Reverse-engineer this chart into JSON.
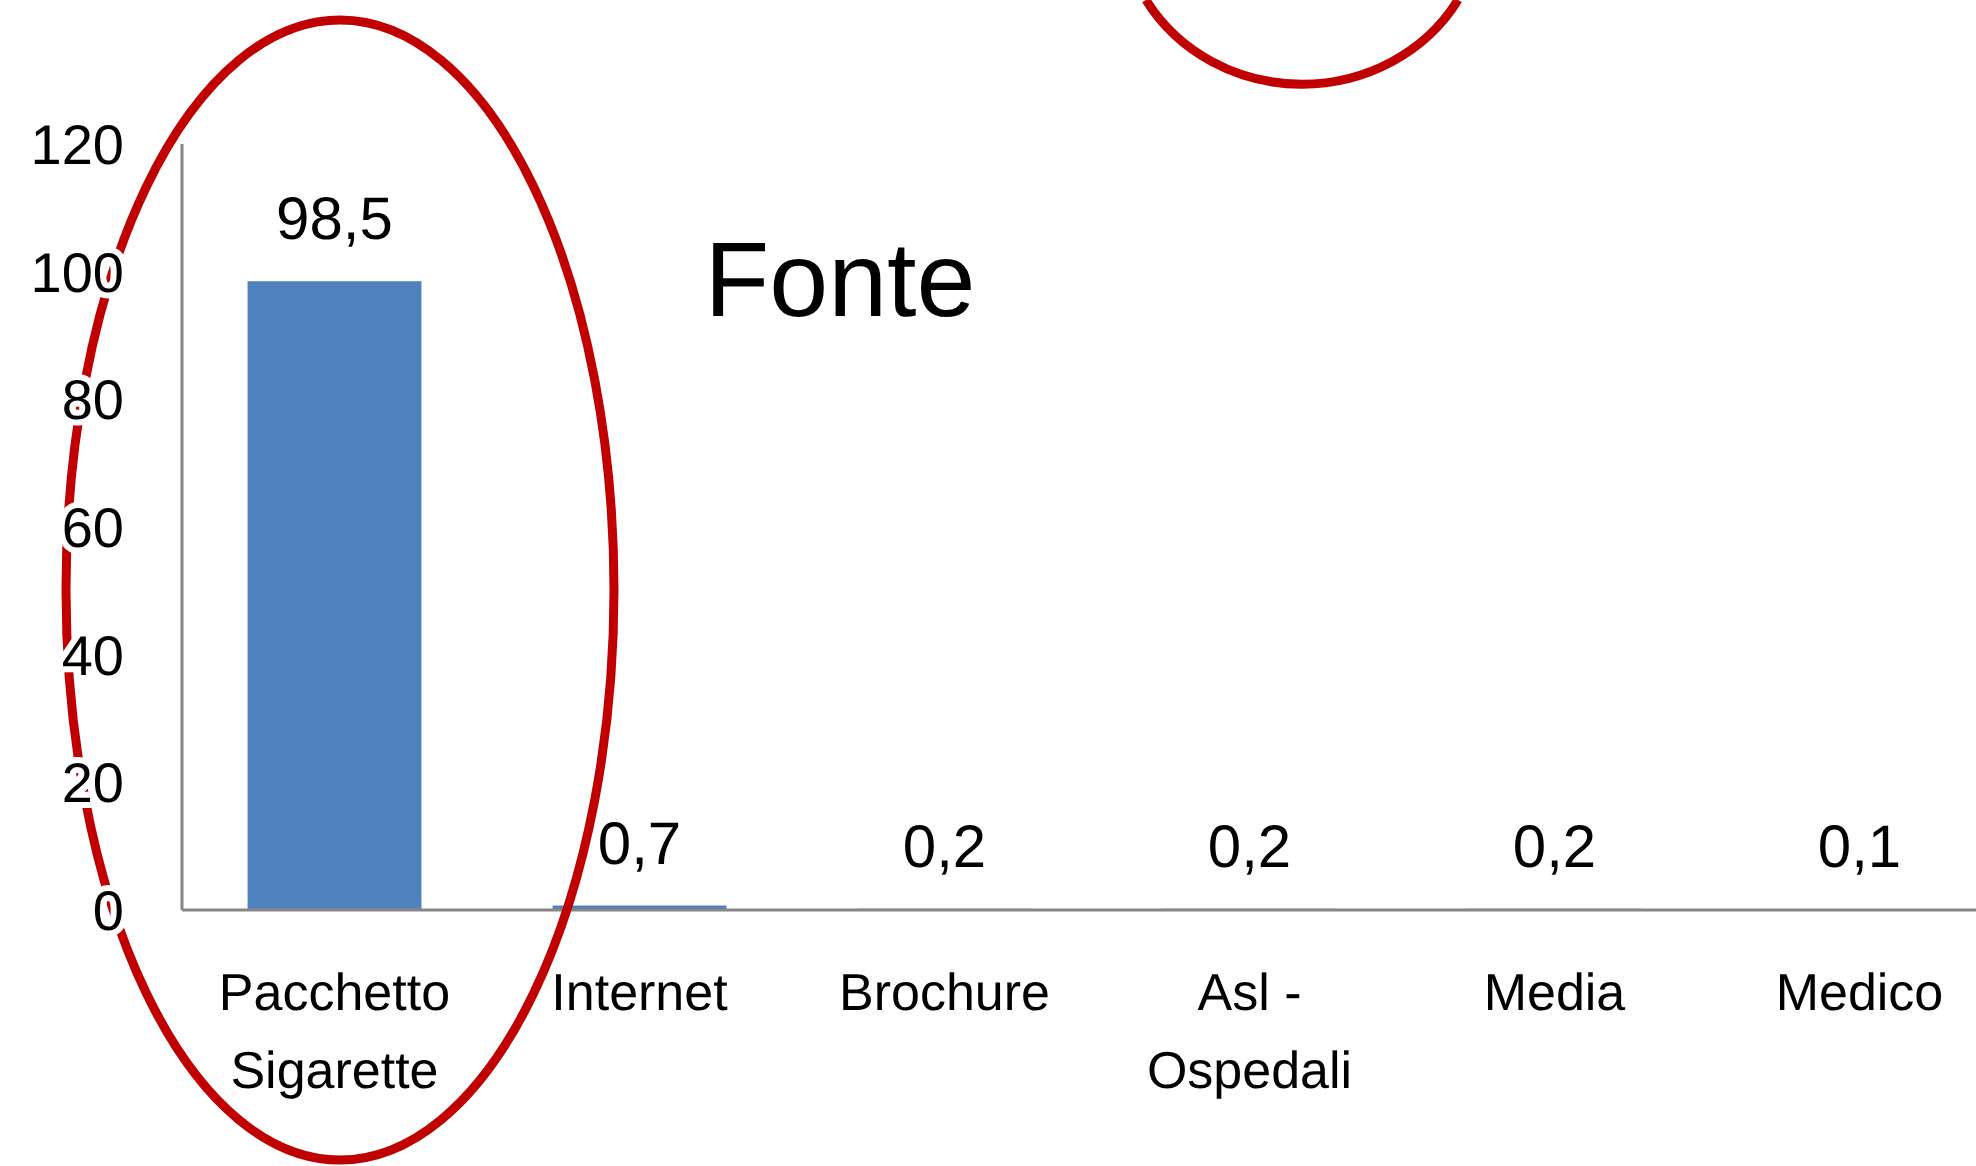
{
  "chart_data": {
    "type": "bar",
    "title": "Fonte",
    "categories": [
      "Pacchetto Sigarette",
      "Internet",
      "Brochure",
      "Asl - Ospedali",
      "Media",
      "Medico"
    ],
    "values": [
      98.5,
      0.7,
      0.2,
      0.2,
      0.2,
      0.1
    ],
    "color": "#4f81bd",
    "value_labels": [
      "98,5",
      "0,7",
      "0,2",
      "0,2",
      "0,2",
      "0,1"
    ],
    "ylim": [
      0,
      120
    ],
    "yticks": [
      0,
      20,
      40,
      60,
      80,
      100,
      120
    ]
  }
}
